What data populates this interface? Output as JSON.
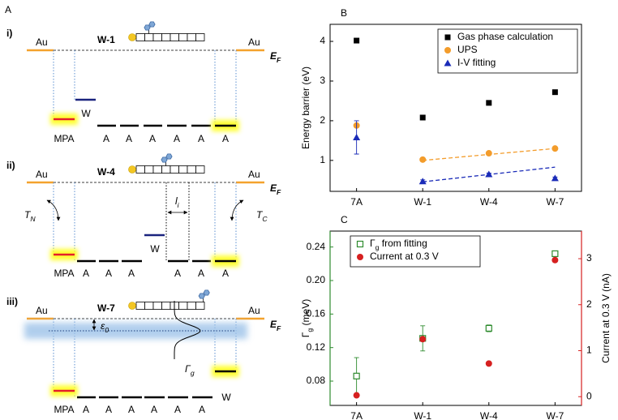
{
  "diagram": {
    "label": "A",
    "panels": [
      {
        "label": "i)",
        "molecule": "W-1",
        "electrodes": [
          "Au",
          "Au"
        ],
        "fermi": {
          "main": "E",
          "sub": "F"
        },
        "w_label": "W",
        "level_labels": [
          "MPA",
          "A",
          "A",
          "A",
          "A",
          "A",
          "A"
        ]
      },
      {
        "label": "ii)",
        "molecule": "W-4",
        "electrodes": [
          "Au",
          "Au"
        ],
        "fermi": {
          "main": "E",
          "sub": "F"
        },
        "w_label": "W",
        "level_labels": [
          "MPA",
          "A",
          "A",
          "A",
          "A",
          "A",
          "A"
        ],
        "tunneling": [
          {
            "main": "T",
            "sub": "N"
          },
          {
            "main": "T",
            "sub": "C"
          }
        ],
        "length": {
          "main": "l",
          "sub": "i"
        }
      },
      {
        "label": "iii)",
        "molecule": "W-7",
        "electrodes": [
          "Au",
          "Au"
        ],
        "fermi": {
          "main": "E",
          "sub": "F"
        },
        "w_label": "W",
        "level_labels": [
          "MPA",
          "A",
          "A",
          "A",
          "A",
          "A",
          "A"
        ],
        "epsilon": {
          "main": "ε",
          "sub": "0"
        },
        "gamma": {
          "main": "Γ",
          "sub": "g"
        }
      }
    ]
  },
  "chart_data": [
    {
      "panel_label": "B",
      "type": "scatter",
      "categories": [
        "7A",
        "W-1",
        "W-4",
        "W-7"
      ],
      "ylabel": "Energy barrier (eV)",
      "ylim": [
        0.22,
        4.43
      ],
      "yticks": [
        1,
        2,
        3,
        4
      ],
      "legend": "upper right",
      "series": [
        {
          "name": "Gas phase calculation",
          "color": "#000000",
          "marker": "square",
          "values": [
            4.02,
            2.08,
            2.45,
            2.72
          ]
        },
        {
          "name": "UPS",
          "color": "#f39c2b",
          "marker": "circle",
          "values": [
            1.88,
            1.02,
            1.18,
            1.3
          ],
          "fit": [
            1.0,
            1.3
          ]
        },
        {
          "name": "I-V fitting",
          "color": "#1a2bb8",
          "marker": "triangle",
          "values": [
            1.58,
            0.47,
            0.65,
            0.55
          ],
          "errors": [
            0.42,
            0.04,
            0.03,
            0.03
          ],
          "fit": [
            0.46,
            0.83
          ]
        }
      ]
    },
    {
      "panel_label": "C",
      "type": "scatter",
      "categories": [
        "7A",
        "W-1",
        "W-4",
        "W-7"
      ],
      "ylabel": {
        "main": "Γ",
        "sub": "g",
        "rest": " (meV)"
      },
      "y2label": "Current at 0.3 V (nA)",
      "ylim": [
        0.051,
        0.259
      ],
      "yticks": [
        0.08,
        0.12,
        0.16,
        {
          "value": 0.2,
          "label": "0.20"
        },
        0.24
      ],
      "y2lim": [
        -0.19,
        3.6
      ],
      "y2ticks": [
        0,
        1,
        2,
        3
      ],
      "ycolor": "#2e8b2e",
      "y2color": "#d62020",
      "legend": "upper left",
      "series": [
        {
          "name": {
            "main": "Γ",
            "sub": "g",
            "rest": " from fitting"
          },
          "color": "#2e8b2e",
          "marker": "open-square",
          "values": [
            0.086,
            0.131,
            0.143,
            0.232
          ],
          "errors": [
            0.022,
            0.015,
            0.004,
            0.003
          ]
        },
        {
          "name": "Current at 0.3 V",
          "color": "#d62020",
          "marker": "circle",
          "axis": "y2",
          "values": [
            0.03,
            1.25,
            0.72,
            2.97
          ]
        }
      ]
    }
  ]
}
